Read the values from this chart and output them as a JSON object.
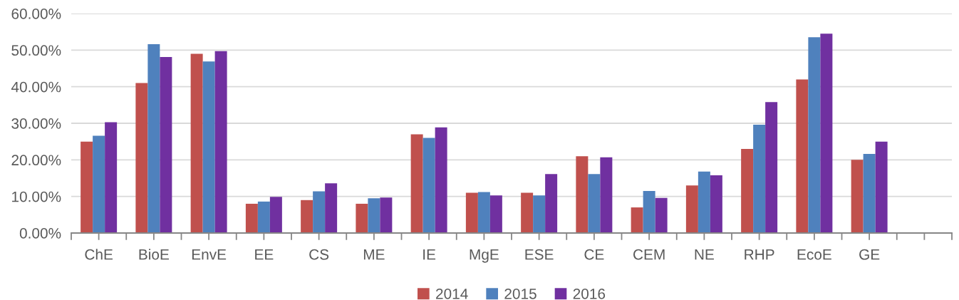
{
  "chart_data": {
    "type": "bar",
    "categories": [
      "ChE",
      "BioE",
      "EnvE",
      "EE",
      "CS",
      "ME",
      "IE",
      "MgE",
      "ESE",
      "CE",
      "CEM",
      "NE",
      "RHP",
      "EcoE",
      "GE",
      null
    ],
    "series": [
      {
        "name": "2014",
        "color": "#c0504d",
        "values": [
          25,
          41,
          49,
          8,
          9,
          8,
          27,
          11,
          11,
          21,
          7,
          13,
          23,
          42,
          20,
          null
        ]
      },
      {
        "name": "2015",
        "color": "#4f81bd",
        "values": [
          26.6,
          51.6,
          46.9,
          8.6,
          11.4,
          9.5,
          26.0,
          11.2,
          10.3,
          16.1,
          11.5,
          16.8,
          29.6,
          53.5,
          21.6,
          null
        ]
      },
      {
        "name": "2016",
        "color": "#7030a0",
        "values": [
          30.3,
          48.1,
          49.7,
          9.9,
          13.6,
          9.7,
          28.9,
          10.3,
          16.1,
          20.7,
          9.6,
          15.8,
          35.8,
          54.5,
          25.0,
          null
        ]
      }
    ],
    "ylim": [
      0,
      60
    ],
    "yticks": [
      {
        "value": 0,
        "label": "0.00%"
      },
      {
        "value": 10,
        "label": "10.00%"
      },
      {
        "value": 20,
        "label": "20.00%"
      },
      {
        "value": 30,
        "label": "30.00%"
      },
      {
        "value": 40,
        "label": "40.00%"
      },
      {
        "value": 50,
        "label": "50.00%"
      },
      {
        "value": 60,
        "label": "60.00%"
      }
    ],
    "grid": "y",
    "legend": "bottom"
  }
}
